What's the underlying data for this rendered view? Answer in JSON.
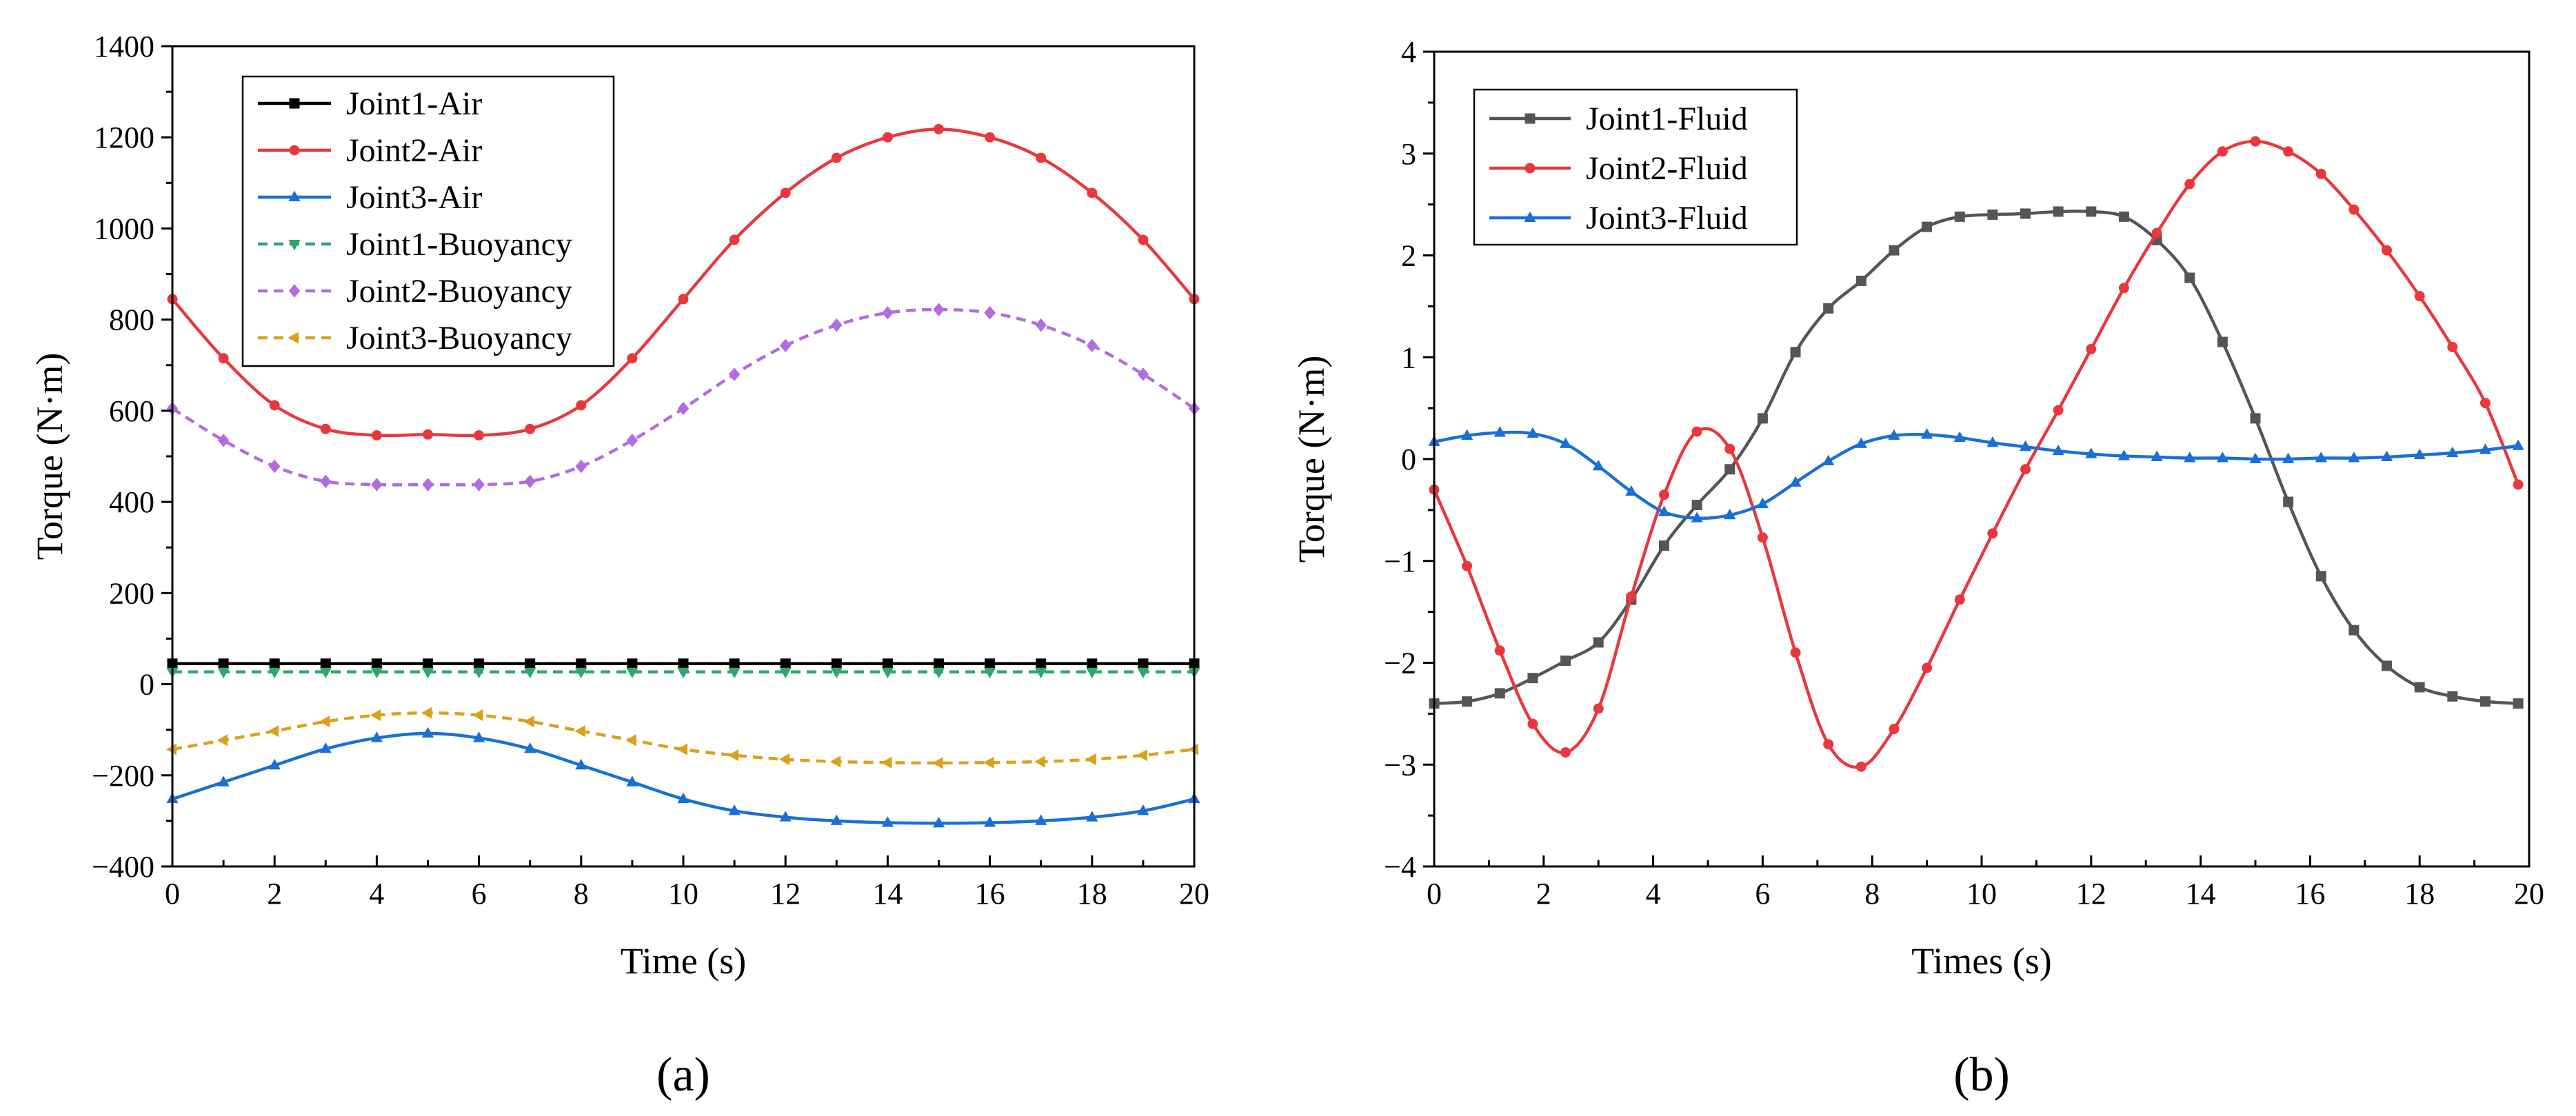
{
  "figure_labels": {
    "a": "(a)",
    "b": "(b)"
  },
  "chart_data": [
    {
      "type": "line",
      "panel": "a",
      "xlabel": "Time (s)",
      "ylabel": "Torque (N·m)",
      "xlim": [
        0,
        20
      ],
      "ylim": [
        -400,
        1400
      ],
      "xticks": [
        0,
        2,
        4,
        6,
        8,
        10,
        12,
        14,
        16,
        18,
        20
      ],
      "yticks": [
        -400,
        -200,
        0,
        200,
        400,
        600,
        800,
        1000,
        1200,
        1400
      ],
      "legend_position": "top-left",
      "x": [
        0,
        1,
        2,
        3,
        4,
        5,
        6,
        7,
        8,
        9,
        10,
        11,
        12,
        13,
        14,
        15,
        16,
        17,
        18,
        19,
        20
      ],
      "series": [
        {
          "name": "Joint1-Air",
          "color": "#000000",
          "dash": "solid",
          "marker": "square",
          "values": [
            45,
            45,
            45,
            45,
            45,
            45,
            45,
            45,
            45,
            45,
            45,
            45,
            45,
            45,
            45,
            45,
            45,
            45,
            45,
            45,
            45
          ]
        },
        {
          "name": "Joint2-Air",
          "color": "#e8383d",
          "dash": "solid",
          "marker": "circle",
          "values": [
            845,
            715,
            612,
            560,
            546,
            548,
            546,
            560,
            612,
            715,
            845,
            975,
            1078,
            1155,
            1200,
            1218,
            1200,
            1155,
            1078,
            975,
            845
          ]
        },
        {
          "name": "Joint3-Air",
          "color": "#1a6fd4",
          "dash": "solid",
          "marker": "triangle-up",
          "values": [
            -252,
            -215,
            -178,
            -142,
            -118,
            -108,
            -118,
            -142,
            -178,
            -215,
            -252,
            -278,
            -292,
            -300,
            -304,
            -305,
            -304,
            -300,
            -292,
            -278,
            -252
          ]
        },
        {
          "name": "Joint1-Buoyancy",
          "color": "#2ea86a",
          "dash": "dashed",
          "marker": "triangle-down",
          "values": [
            27,
            27,
            27,
            27,
            27,
            27,
            27,
            27,
            27,
            27,
            27,
            27,
            27,
            27,
            27,
            27,
            27,
            27,
            27,
            27,
            27
          ]
        },
        {
          "name": "Joint2-Buoyancy",
          "color": "#b36be0",
          "dash": "dashed",
          "marker": "diamond",
          "values": [
            605,
            535,
            478,
            445,
            438,
            438,
            438,
            445,
            478,
            535,
            605,
            680,
            743,
            788,
            815,
            822,
            815,
            788,
            743,
            680,
            605
          ]
        },
        {
          "name": "Joint3-Buoyancy",
          "color": "#d9a21b",
          "dash": "dashed",
          "marker": "triangle-left",
          "values": [
            -143,
            -123,
            -103,
            -82,
            -68,
            -63,
            -68,
            -82,
            -103,
            -123,
            -143,
            -156,
            -165,
            -170,
            -172,
            -173,
            -172,
            -170,
            -165,
            -156,
            -143
          ]
        }
      ]
    },
    {
      "type": "line",
      "panel": "b",
      "xlabel": "Times (s)",
      "ylabel": "Torque (N·m)",
      "xlim": [
        0,
        20
      ],
      "ylim": [
        -4,
        4
      ],
      "xticks": [
        0,
        2,
        4,
        6,
        8,
        10,
        12,
        14,
        16,
        18,
        20
      ],
      "yticks": [
        -4,
        -3,
        -2,
        -1,
        0,
        1,
        2,
        3,
        4
      ],
      "legend_position": "top-left",
      "x": [
        0,
        0.6,
        1.2,
        1.8,
        2.4,
        3.0,
        3.6,
        4.2,
        4.8,
        5.4,
        6.0,
        6.6,
        7.2,
        7.8,
        8.4,
        9.0,
        9.6,
        10.2,
        10.8,
        11.4,
        12.0,
        12.6,
        13.2,
        13.8,
        14.4,
        15.0,
        15.6,
        16.2,
        16.8,
        17.4,
        18.0,
        18.6,
        19.2,
        19.8
      ],
      "series": [
        {
          "name": "Joint1-Fluid",
          "color": "#555555",
          "dash": "solid",
          "marker": "square",
          "values": [
            -2.4,
            -2.38,
            -2.3,
            -2.15,
            -1.98,
            -1.8,
            -1.38,
            -0.85,
            -0.45,
            -0.1,
            0.4,
            1.05,
            1.48,
            1.75,
            2.05,
            2.28,
            2.38,
            2.4,
            2.41,
            2.43,
            2.43,
            2.38,
            2.15,
            1.78,
            1.15,
            0.4,
            -0.42,
            -1.15,
            -1.68,
            -2.03,
            -2.24,
            -2.33,
            -2.38,
            -2.4
          ]
        },
        {
          "name": "Joint2-Fluid",
          "color": "#e8383d",
          "dash": "solid",
          "marker": "circle",
          "values": [
            -0.3,
            -1.05,
            -1.88,
            -2.6,
            -2.88,
            -2.45,
            -1.35,
            -0.35,
            0.27,
            0.1,
            -0.77,
            -1.9,
            -2.8,
            -3.02,
            -2.65,
            -2.05,
            -1.38,
            -0.73,
            -0.1,
            0.48,
            1.08,
            1.68,
            2.22,
            2.7,
            3.02,
            3.12,
            3.02,
            2.8,
            2.45,
            2.05,
            1.6,
            1.1,
            0.55,
            -0.25
          ]
        },
        {
          "name": "Joint3-Fluid",
          "color": "#1a6fd4",
          "dash": "solid",
          "marker": "triangle-up",
          "values": [
            0.17,
            0.23,
            0.26,
            0.25,
            0.15,
            -0.07,
            -0.32,
            -0.52,
            -0.58,
            -0.55,
            -0.44,
            -0.23,
            -0.02,
            0.15,
            0.23,
            0.24,
            0.21,
            0.16,
            0.12,
            0.08,
            0.05,
            0.03,
            0.02,
            0.01,
            0.01,
            0.0,
            0.0,
            0.01,
            0.01,
            0.02,
            0.04,
            0.06,
            0.09,
            0.13
          ]
        }
      ]
    }
  ]
}
